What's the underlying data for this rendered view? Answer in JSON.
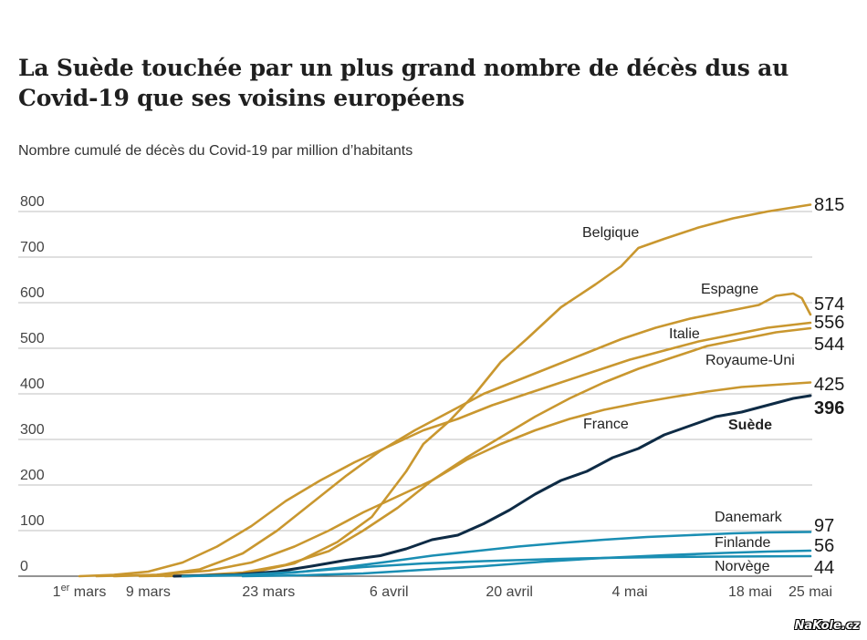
{
  "chart_data": {
    "type": "line",
    "title": "La Suède touchée par un plus grand nombre de décès dus au Covid-19 que ses voisins européens",
    "subtitle": "Nombre cumulé de décès du Covid-19 par million d’habitants",
    "xlabel": "",
    "ylabel": "",
    "ylim": [
      0,
      800
    ],
    "yticks": [
      "0",
      "100",
      "200",
      "300",
      "400",
      "500",
      "600",
      "700",
      "800"
    ],
    "xlim": [
      "2020-03-01",
      "2020-05-25"
    ],
    "xticks": [
      {
        "date": "2020-03-01",
        "label": "1er mars",
        "sup": "er"
      },
      {
        "date": "2020-03-09",
        "label": "9 mars"
      },
      {
        "date": "2020-03-23",
        "label": "23 mars"
      },
      {
        "date": "2020-04-06",
        "label": "6 avril"
      },
      {
        "date": "2020-04-20",
        "label": "20 avril"
      },
      {
        "date": "2020-05-04",
        "label": "4 mai"
      },
      {
        "date": "2020-05-18",
        "label": "18 mai"
      },
      {
        "date": "2020-05-25",
        "label": "25 mai"
      }
    ],
    "grid": true,
    "legend": "direct labels",
    "colors": {
      "others": "#c9972f",
      "suede": "#0e2b45",
      "nordic": "#1a8eb3",
      "grid": "#aaaaaa"
    },
    "series": [
      {
        "name": "Belgique",
        "end_label": "815",
        "color_key": "others",
        "bold": false,
        "points": [
          [
            "2020-03-11",
            0
          ],
          [
            "2020-03-16",
            2
          ],
          [
            "2020-03-21",
            8
          ],
          [
            "2020-03-26",
            28
          ],
          [
            "2020-03-31",
            75
          ],
          [
            "2020-04-04",
            130
          ],
          [
            "2020-04-06",
            180
          ],
          [
            "2020-04-08",
            230
          ],
          [
            "2020-04-10",
            290
          ],
          [
            "2020-04-13",
            340
          ],
          [
            "2020-04-16",
            400
          ],
          [
            "2020-04-19",
            470
          ],
          [
            "2020-04-22",
            520
          ],
          [
            "2020-04-26",
            590
          ],
          [
            "2020-04-30",
            640
          ],
          [
            "2020-05-03",
            680
          ],
          [
            "2020-05-04",
            700
          ],
          [
            "2020-05-05",
            720
          ],
          [
            "2020-05-08",
            740
          ],
          [
            "2020-05-12",
            765
          ],
          [
            "2020-05-16",
            785
          ],
          [
            "2020-05-20",
            800
          ],
          [
            "2020-05-25",
            815
          ]
        ]
      },
      {
        "name": "Espagne",
        "end_label": "574",
        "color_key": "others",
        "bold": false,
        "points": [
          [
            "2020-03-05",
            0
          ],
          [
            "2020-03-10",
            3
          ],
          [
            "2020-03-15",
            15
          ],
          [
            "2020-03-20",
            50
          ],
          [
            "2020-03-24",
            100
          ],
          [
            "2020-03-28",
            160
          ],
          [
            "2020-04-01",
            220
          ],
          [
            "2020-04-05",
            275
          ],
          [
            "2020-04-09",
            320
          ],
          [
            "2020-04-13",
            360
          ],
          [
            "2020-04-17",
            400
          ],
          [
            "2020-04-21",
            430
          ],
          [
            "2020-04-25",
            460
          ],
          [
            "2020-04-29",
            490
          ],
          [
            "2020-05-03",
            520
          ],
          [
            "2020-05-07",
            545
          ],
          [
            "2020-05-11",
            565
          ],
          [
            "2020-05-15",
            580
          ],
          [
            "2020-05-19",
            595
          ],
          [
            "2020-05-21",
            615
          ],
          [
            "2020-05-23",
            620
          ],
          [
            "2020-05-24",
            610
          ],
          [
            "2020-05-25",
            574
          ]
        ]
      },
      {
        "name": "Italie",
        "end_label": "556",
        "color_key": "others",
        "bold": false,
        "points": [
          [
            "2020-03-01",
            0
          ],
          [
            "2020-03-05",
            3
          ],
          [
            "2020-03-09",
            10
          ],
          [
            "2020-03-13",
            30
          ],
          [
            "2020-03-17",
            65
          ],
          [
            "2020-03-21",
            110
          ],
          [
            "2020-03-25",
            165
          ],
          [
            "2020-03-29",
            210
          ],
          [
            "2020-04-02",
            250
          ],
          [
            "2020-04-06",
            285
          ],
          [
            "2020-04-10",
            320
          ],
          [
            "2020-04-14",
            345
          ],
          [
            "2020-04-18",
            375
          ],
          [
            "2020-04-22",
            400
          ],
          [
            "2020-04-26",
            425
          ],
          [
            "2020-04-30",
            450
          ],
          [
            "2020-05-04",
            475
          ],
          [
            "2020-05-08",
            495
          ],
          [
            "2020-05-12",
            515
          ],
          [
            "2020-05-16",
            530
          ],
          [
            "2020-05-20",
            545
          ],
          [
            "2020-05-25",
            556
          ]
        ]
      },
      {
        "name": "Royaume-Uni",
        "end_label": "544",
        "color_key": "others",
        "bold": false,
        "points": [
          [
            "2020-03-08",
            0
          ],
          [
            "2020-03-15",
            2
          ],
          [
            "2020-03-20",
            8
          ],
          [
            "2020-03-25",
            25
          ],
          [
            "2020-03-30",
            55
          ],
          [
            "2020-04-03",
            100
          ],
          [
            "2020-04-07",
            150
          ],
          [
            "2020-04-11",
            210
          ],
          [
            "2020-04-15",
            260
          ],
          [
            "2020-04-19",
            305
          ],
          [
            "2020-04-23",
            350
          ],
          [
            "2020-04-27",
            390
          ],
          [
            "2020-05-01",
            425
          ],
          [
            "2020-05-05",
            455
          ],
          [
            "2020-05-09",
            480
          ],
          [
            "2020-05-13",
            505
          ],
          [
            "2020-05-17",
            520
          ],
          [
            "2020-05-21",
            535
          ],
          [
            "2020-05-25",
            544
          ]
        ]
      },
      {
        "name": "France",
        "end_label": "425",
        "color_key": "others",
        "bold": false,
        "points": [
          [
            "2020-03-03",
            0
          ],
          [
            "2020-03-10",
            3
          ],
          [
            "2020-03-16",
            12
          ],
          [
            "2020-03-21",
            30
          ],
          [
            "2020-03-26",
            65
          ],
          [
            "2020-03-30",
            100
          ],
          [
            "2020-04-03",
            140
          ],
          [
            "2020-04-07",
            175
          ],
          [
            "2020-04-11",
            210
          ],
          [
            "2020-04-15",
            255
          ],
          [
            "2020-04-19",
            290
          ],
          [
            "2020-04-23",
            320
          ],
          [
            "2020-04-27",
            345
          ],
          [
            "2020-05-01",
            365
          ],
          [
            "2020-05-05",
            380
          ],
          [
            "2020-05-09",
            393
          ],
          [
            "2020-05-13",
            405
          ],
          [
            "2020-05-17",
            415
          ],
          [
            "2020-05-21",
            420
          ],
          [
            "2020-05-25",
            425
          ]
        ]
      },
      {
        "name": "Suède",
        "end_label": "396",
        "color_key": "suede",
        "bold": true,
        "points": [
          [
            "2020-03-12",
            0
          ],
          [
            "2020-03-19",
            3
          ],
          [
            "2020-03-24",
            10
          ],
          [
            "2020-03-28",
            22
          ],
          [
            "2020-04-01",
            35
          ],
          [
            "2020-04-05",
            45
          ],
          [
            "2020-04-08",
            60
          ],
          [
            "2020-04-11",
            80
          ],
          [
            "2020-04-14",
            90
          ],
          [
            "2020-04-17",
            115
          ],
          [
            "2020-04-20",
            145
          ],
          [
            "2020-04-23",
            180
          ],
          [
            "2020-04-26",
            210
          ],
          [
            "2020-04-29",
            230
          ],
          [
            "2020-05-02",
            260
          ],
          [
            "2020-05-05",
            280
          ],
          [
            "2020-05-08",
            310
          ],
          [
            "2020-05-11",
            330
          ],
          [
            "2020-05-14",
            350
          ],
          [
            "2020-05-17",
            360
          ],
          [
            "2020-05-20",
            375
          ],
          [
            "2020-05-23",
            390
          ],
          [
            "2020-05-25",
            396
          ]
        ]
      },
      {
        "name": "Danemark",
        "end_label": "97",
        "color_key": "nordic",
        "bold": false,
        "points": [
          [
            "2020-03-13",
            0
          ],
          [
            "2020-03-20",
            2
          ],
          [
            "2020-03-26",
            8
          ],
          [
            "2020-04-01",
            20
          ],
          [
            "2020-04-06",
            32
          ],
          [
            "2020-04-11",
            45
          ],
          [
            "2020-04-16",
            55
          ],
          [
            "2020-04-21",
            65
          ],
          [
            "2020-04-26",
            73
          ],
          [
            "2020-05-01",
            80
          ],
          [
            "2020-05-06",
            86
          ],
          [
            "2020-05-11",
            90
          ],
          [
            "2020-05-16",
            94
          ],
          [
            "2020-05-20",
            96
          ],
          [
            "2020-05-25",
            97
          ]
        ]
      },
      {
        "name": "Finlande",
        "end_label": "56",
        "color_key": "nordic",
        "bold": false,
        "points": [
          [
            "2020-03-20",
            0
          ],
          [
            "2020-03-27",
            2
          ],
          [
            "2020-04-03",
            6
          ],
          [
            "2020-04-10",
            14
          ],
          [
            "2020-04-17",
            22
          ],
          [
            "2020-04-24",
            32
          ],
          [
            "2020-05-01",
            40
          ],
          [
            "2020-05-08",
            46
          ],
          [
            "2020-05-15",
            51
          ],
          [
            "2020-05-20",
            54
          ],
          [
            "2020-05-25",
            56
          ]
        ]
      },
      {
        "name": "Norvège",
        "end_label": "44",
        "color_key": "nordic",
        "bold": false,
        "points": [
          [
            "2020-03-13",
            0
          ],
          [
            "2020-03-20",
            3
          ],
          [
            "2020-03-27",
            10
          ],
          [
            "2020-04-03",
            20
          ],
          [
            "2020-04-10",
            28
          ],
          [
            "2020-04-17",
            33
          ],
          [
            "2020-04-24",
            37
          ],
          [
            "2020-05-01",
            40
          ],
          [
            "2020-05-08",
            42
          ],
          [
            "2020-05-15",
            43
          ],
          [
            "2020-05-25",
            44
          ]
        ]
      }
    ]
  },
  "watermark": "NaKole.cz"
}
